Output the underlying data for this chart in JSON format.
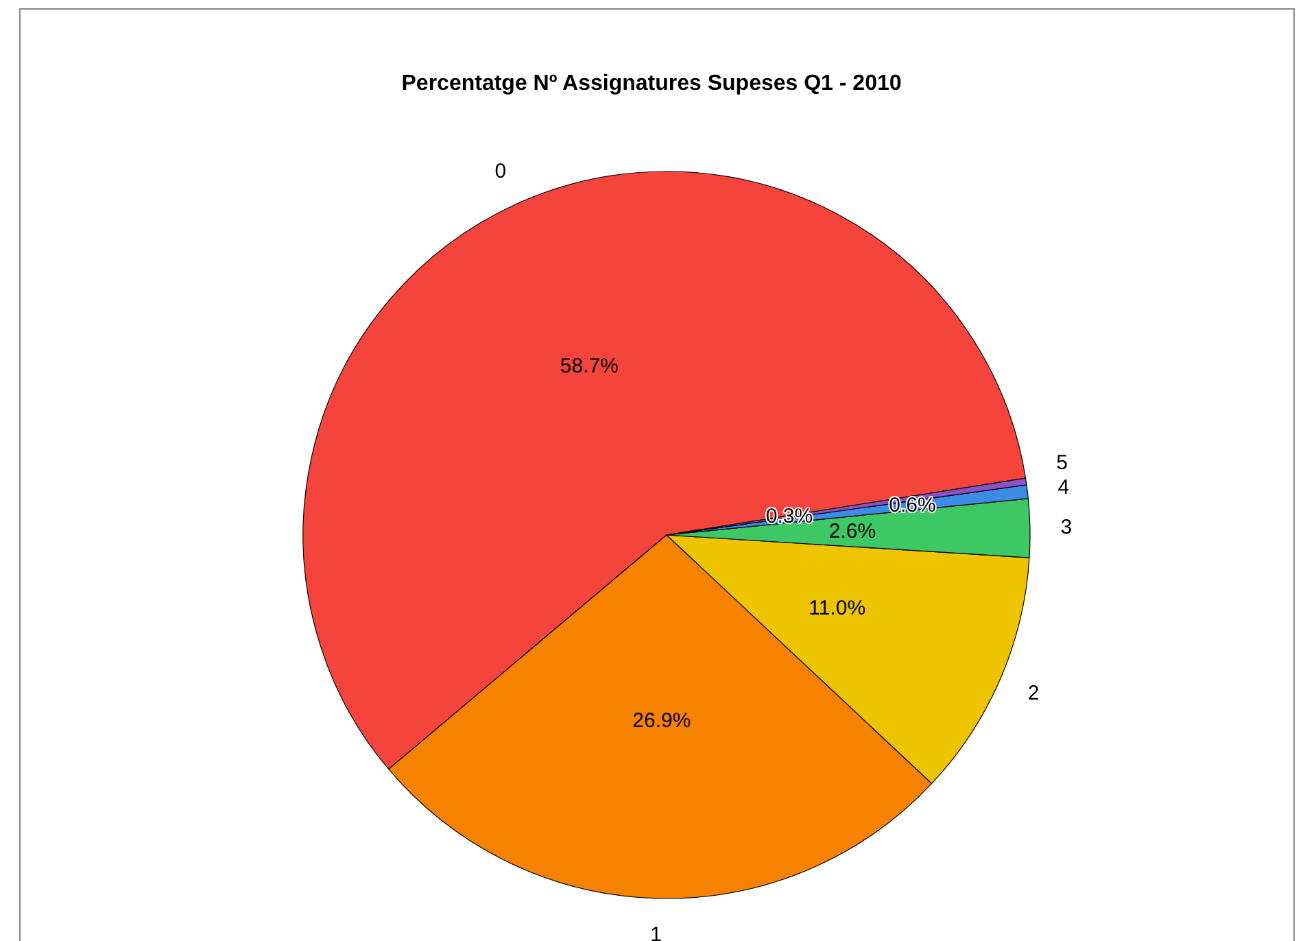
{
  "chart_data": {
    "type": "pie",
    "title": "Percentatge Nº Assignatures Supeses Q1 - 2010",
    "categories": [
      "0",
      "1",
      "2",
      "3",
      "4",
      "5"
    ],
    "values": [
      58.7,
      26.9,
      11.0,
      2.6,
      0.6,
      0.3
    ],
    "value_labels": [
      "58.7%",
      "26.9%",
      "11.0%",
      "2.6%",
      "0.6%",
      "0.3%"
    ],
    "colors": [
      "#f5443c",
      "#f78200",
      "#eec400",
      "#3ec864",
      "#3c8ce6",
      "#8c50c8"
    ],
    "legend": false
  }
}
